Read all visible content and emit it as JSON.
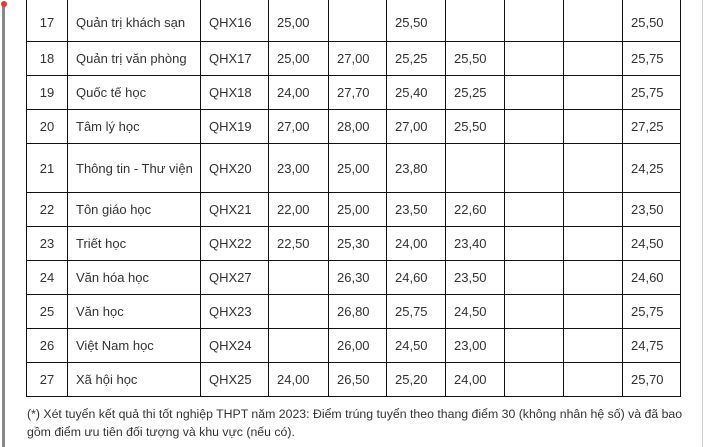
{
  "rows": [
    [
      "17",
      "Quản trị khách sạn",
      "QHX16",
      "25,00",
      "",
      "25,50",
      "",
      "",
      "",
      "25,50"
    ],
    [
      "18",
      "Quản trị văn phòng",
      "QHX17",
      "25,00",
      "27,00",
      "25,25",
      "25,50",
      "",
      "",
      "25,75"
    ],
    [
      "19",
      "Quốc tế học",
      "QHX18",
      "24,00",
      "27,70",
      "25,40",
      "25,25",
      "",
      "",
      "25,75"
    ],
    [
      "20",
      "Tâm lý học",
      "QHX19",
      "27,00",
      "28,00",
      "27,00",
      "25,50",
      "",
      "",
      "27,25"
    ],
    [
      "21",
      "Thông tin - Thư viện",
      "QHX20",
      "23,00",
      "25,00",
      "23,80",
      "",
      "",
      "",
      "24,25"
    ],
    [
      "22",
      "Tôn giáo học",
      "QHX21",
      "22,00",
      "25,00",
      "23,50",
      "22,60",
      "",
      "",
      "23,50"
    ],
    [
      "23",
      "Triết học",
      "QHX22",
      "22,50",
      "25,30",
      "24,00",
      "23,40",
      "",
      "",
      "24,50"
    ],
    [
      "24",
      "Văn hóa học",
      "QHX27",
      "",
      "26,30",
      "24,60",
      "23,50",
      "",
      "",
      "24,60"
    ],
    [
      "25",
      "Văn học",
      "QHX23",
      "",
      "26,80",
      "25,75",
      "24,50",
      "",
      "",
      "25,75"
    ],
    [
      "26",
      "Việt Nam học",
      "QHX24",
      "",
      "26,00",
      "24,50",
      "23,00",
      "",
      "",
      "24,75"
    ],
    [
      "27",
      "Xã hội học",
      "QHX25",
      "24,00",
      "26,50",
      "25,20",
      "24,00",
      "",
      "",
      "25,70"
    ]
  ],
  "footnote": "(*) Xét tuyển kết quả thi tốt nghiệp THPT năm 2023: Điểm trúng tuyển theo thang điểm 30 (không nhân hệ số) và đã bao gồm điểm ưu tiên đối tượng và khu vực (nếu có)."
}
